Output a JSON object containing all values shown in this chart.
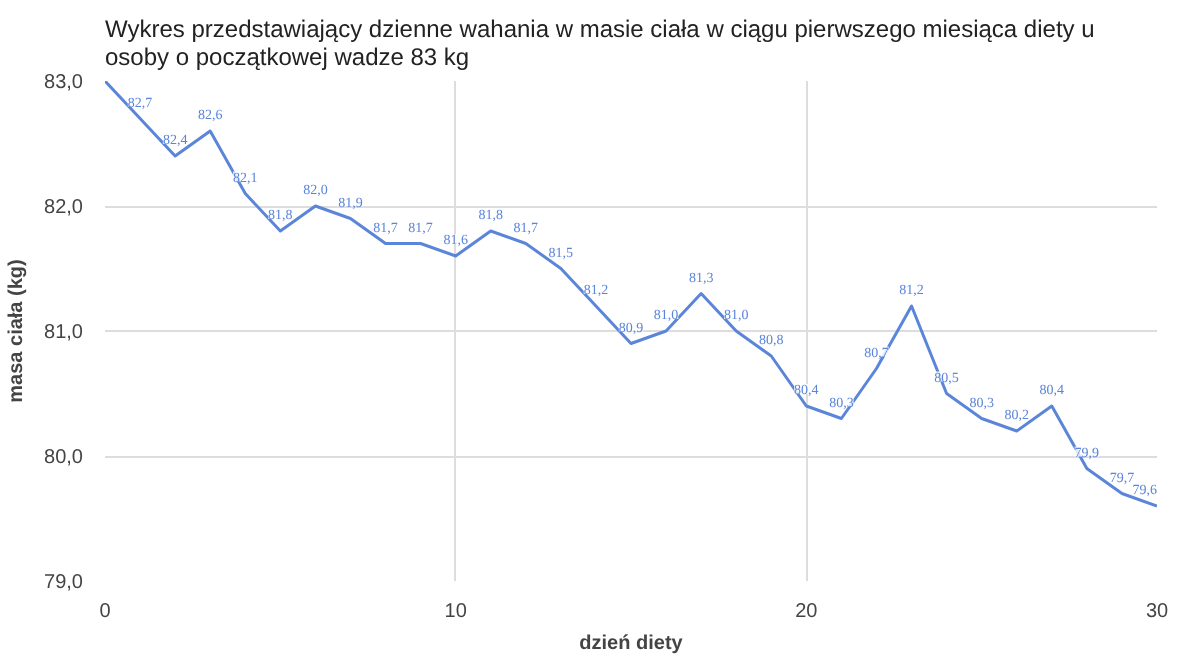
{
  "chart_data": {
    "type": "line",
    "title": "Wykres przedstawiający dzienne wahania w masie ciała w ciągu pierwszego miesiąca diety u osoby o początkowej wadze 83 kg",
    "xlabel": "dzień diety",
    "ylabel": "masa ciała (kg)",
    "x": [
      0,
      1,
      2,
      3,
      4,
      5,
      6,
      7,
      8,
      9,
      10,
      11,
      12,
      13,
      14,
      15,
      16,
      17,
      18,
      19,
      20,
      21,
      22,
      23,
      24,
      25,
      26,
      27,
      28,
      29,
      30
    ],
    "series": [
      {
        "color": "#5b85d9",
        "values": [
          83.0,
          82.7,
          82.4,
          82.6,
          82.1,
          81.8,
          82.0,
          81.9,
          81.7,
          81.7,
          81.6,
          81.8,
          81.7,
          81.5,
          81.2,
          80.9,
          81.0,
          81.3,
          81.0,
          80.8,
          80.4,
          80.3,
          80.7,
          81.2,
          80.5,
          80.3,
          80.2,
          80.4,
          79.9,
          79.7,
          79.6
        ],
        "value_labels": [
          null,
          "82,7",
          "82,4",
          "82,6",
          "82,1",
          "81,8",
          "82,0",
          "81,9",
          "81,7",
          "81,7",
          "81,6",
          "81,8",
          "81,7",
          "81,5",
          "81,2",
          "80,9",
          "81,0",
          "81,3",
          "81,0",
          "80,8",
          "80,4",
          "80,3",
          "80,7",
          "81,2",
          "80,5",
          "80,3",
          "80,2",
          "80,4",
          "79,9",
          "79,7",
          "79,6"
        ]
      }
    ],
    "xlim": [
      0,
      30
    ],
    "xticks": [
      0,
      10,
      20,
      30
    ],
    "ylim": [
      79.0,
      83.0
    ],
    "yticks": [
      {
        "value": 79.0,
        "label": "79,0"
      },
      {
        "value": 80.0,
        "label": "80,0"
      },
      {
        "value": 81.0,
        "label": "81,0"
      },
      {
        "value": 82.0,
        "label": "82,0"
      },
      {
        "value": 83.0,
        "label": "83,0"
      }
    ],
    "grid": true,
    "marker": "none",
    "line_style": "solid"
  }
}
